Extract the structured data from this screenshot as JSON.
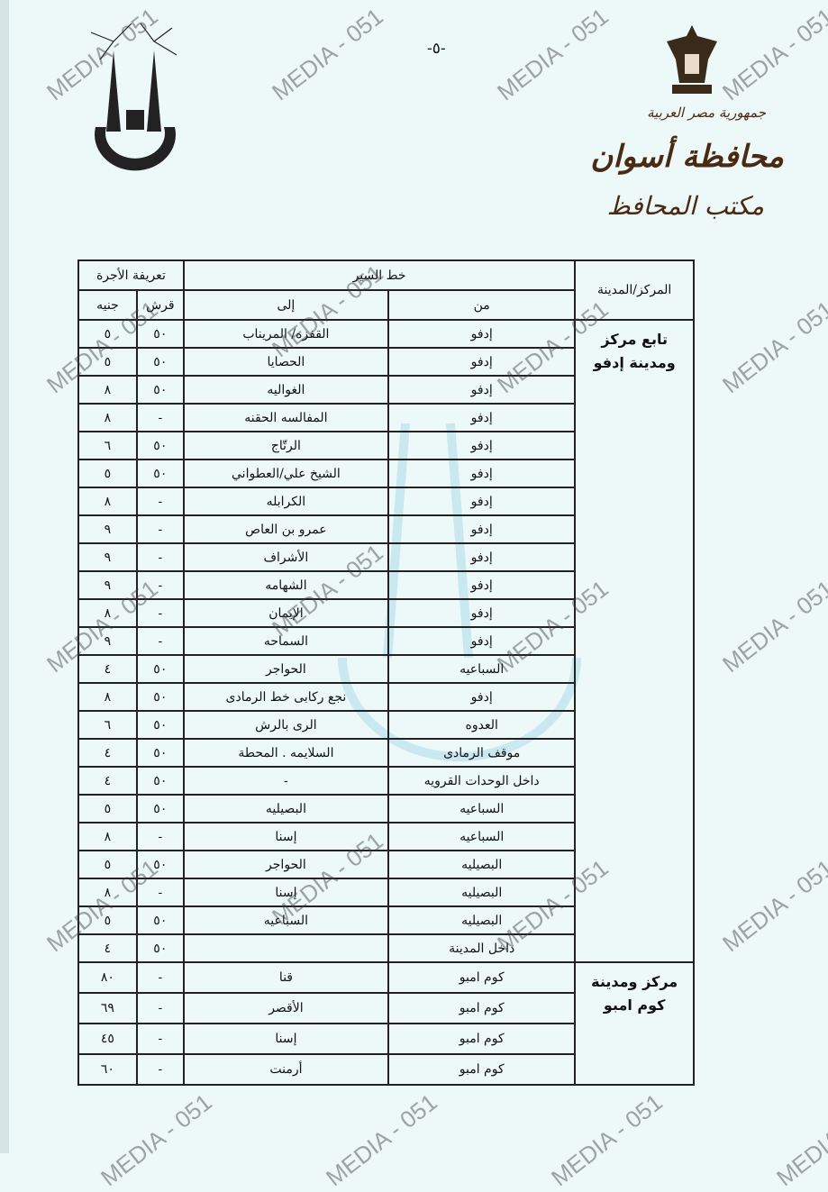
{
  "header": {
    "page_number": "-٥-",
    "country": "جمهورية مصر العربية",
    "governorate": "محافظة أسوان",
    "office": "مكتب المحافظ"
  },
  "table": {
    "headers": {
      "region": "المركز/المدينة",
      "route": "خط السير",
      "from": "من",
      "to": "إلى",
      "fare": "تعريفة الأجرة",
      "piasters": "قرش",
      "pounds": "جنيه"
    },
    "groups": [
      {
        "region": "تابع مركز ومدينة إدفو",
        "rows": [
          {
            "from": "إدفو",
            "to": "القفزه/ المريناب",
            "piasters": "٥٠",
            "pounds": "٥"
          },
          {
            "from": "إدفو",
            "to": "الحصايا",
            "piasters": "٥٠",
            "pounds": "٥"
          },
          {
            "from": "إدفو",
            "to": "الغواليه",
            "piasters": "٥٠",
            "pounds": "٨"
          },
          {
            "from": "إدفو",
            "to": "المفالسه الحقنه",
            "piasters": "-",
            "pounds": "٨"
          },
          {
            "from": "إدفو",
            "to": "الرتّاج",
            "piasters": "٥٠",
            "pounds": "٦"
          },
          {
            "from": "إدفو",
            "to": "الشيخ علي/العطواني",
            "piasters": "٥٠",
            "pounds": "٥"
          },
          {
            "from": "إدفو",
            "to": "الكرابله",
            "piasters": "-",
            "pounds": "٨"
          },
          {
            "from": "إدفو",
            "to": "عمرو بن العاص",
            "piasters": "-",
            "pounds": "٩"
          },
          {
            "from": "إدفو",
            "to": "الأشراف",
            "piasters": "-",
            "pounds": "٩"
          },
          {
            "from": "إدفو",
            "to": "الشهامه",
            "piasters": "-",
            "pounds": "٩"
          },
          {
            "from": "إدفو",
            "to": "الإيمان",
            "piasters": "-",
            "pounds": "٨"
          },
          {
            "from": "إدفو",
            "to": "السماحه",
            "piasters": "-",
            "pounds": "٩"
          },
          {
            "from": "السباعيه",
            "to": "الحواجر",
            "piasters": "٥٠",
            "pounds": "٤"
          },
          {
            "from": "إدفو",
            "to": "نجع ركابى خط الرمادى",
            "piasters": "٥٠",
            "pounds": "٨"
          },
          {
            "from": "العدوه",
            "to": "الرى بالرش",
            "piasters": "٥٠",
            "pounds": "٦"
          },
          {
            "from": "موقف الرمادى",
            "to": "السلايمه . المحطة",
            "piasters": "٥٠",
            "pounds": "٤"
          },
          {
            "from": "داخل الوحدات القرويه",
            "to": "-",
            "piasters": "٥٠",
            "pounds": "٤"
          },
          {
            "from": "السباعيه",
            "to": "البصيليه",
            "piasters": "٥٠",
            "pounds": "٥"
          },
          {
            "from": "السباعيه",
            "to": "إسنا",
            "piasters": "-",
            "pounds": "٨"
          },
          {
            "from": "البصيليه",
            "to": "الحواجر",
            "piasters": "٥٠",
            "pounds": "٥"
          },
          {
            "from": "البصيليه",
            "to": "إسنا",
            "piasters": "-",
            "pounds": "٨"
          },
          {
            "from": "البصيليه",
            "to": "السباعيه",
            "piasters": "٥٠",
            "pounds": "٥"
          },
          {
            "from": "داخل المدينة",
            "to": "",
            "piasters": "٥٠",
            "pounds": "٤"
          }
        ]
      },
      {
        "region": "مركز ومدينة كوم امبو",
        "rows": [
          {
            "from": "كوم امبو",
            "to": "قنا",
            "piasters": "-",
            "pounds": "٨٠"
          },
          {
            "from": "كوم امبو",
            "to": "الأقصر",
            "piasters": "-",
            "pounds": "٦٩"
          },
          {
            "from": "كوم امبو",
            "to": "إسنا",
            "piasters": "-",
            "pounds": "٤٥"
          },
          {
            "from": "كوم امبو",
            "to": "أرمنت",
            "piasters": "-",
            "pounds": "٦٠"
          }
        ]
      }
    ]
  },
  "watermark": "MEDIA - 051"
}
